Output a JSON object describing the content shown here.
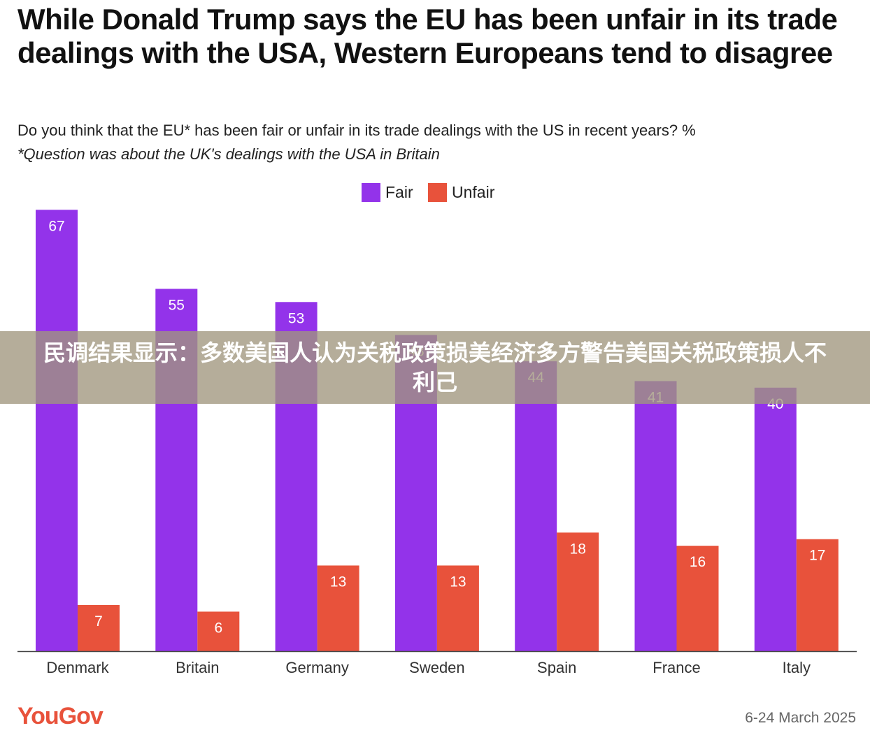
{
  "chart_data": {
    "type": "bar",
    "title": "While Donald Trump says the EU has been unfair in its trade dealings with the USA, Western Europeans tend to disagree",
    "subtitle": "Do you think that the EU* has been fair or unfair in its trade dealings with the US in recent years? %",
    "note": "*Question was about the UK's dealings with the USA in Britain",
    "categories": [
      "Denmark",
      "Britain",
      "Germany",
      "Sweden",
      "Spain",
      "France",
      "Italy"
    ],
    "series": [
      {
        "name": "Fair",
        "color": "#9333ea",
        "values": [
          67,
          55,
          53,
          48,
          44,
          41,
          40
        ]
      },
      {
        "name": "Unfair",
        "color": "#e8523b",
        "values": [
          7,
          6,
          13,
          13,
          18,
          16,
          17
        ]
      }
    ],
    "xlabel": "",
    "ylabel": "",
    "ylim": [
      0,
      70
    ],
    "grid": false,
    "legend": "top-center"
  },
  "overlay": {
    "banner_text": "民调结果显示：多数美国人认为关税政策损美经济多方警告美国关税政策损人不利己"
  },
  "footer": {
    "logo": "YouGov",
    "date": "6-24 March 2025"
  },
  "colors": {
    "fair": "#9333ea",
    "unfair": "#e8523b",
    "axis": "#444444"
  }
}
